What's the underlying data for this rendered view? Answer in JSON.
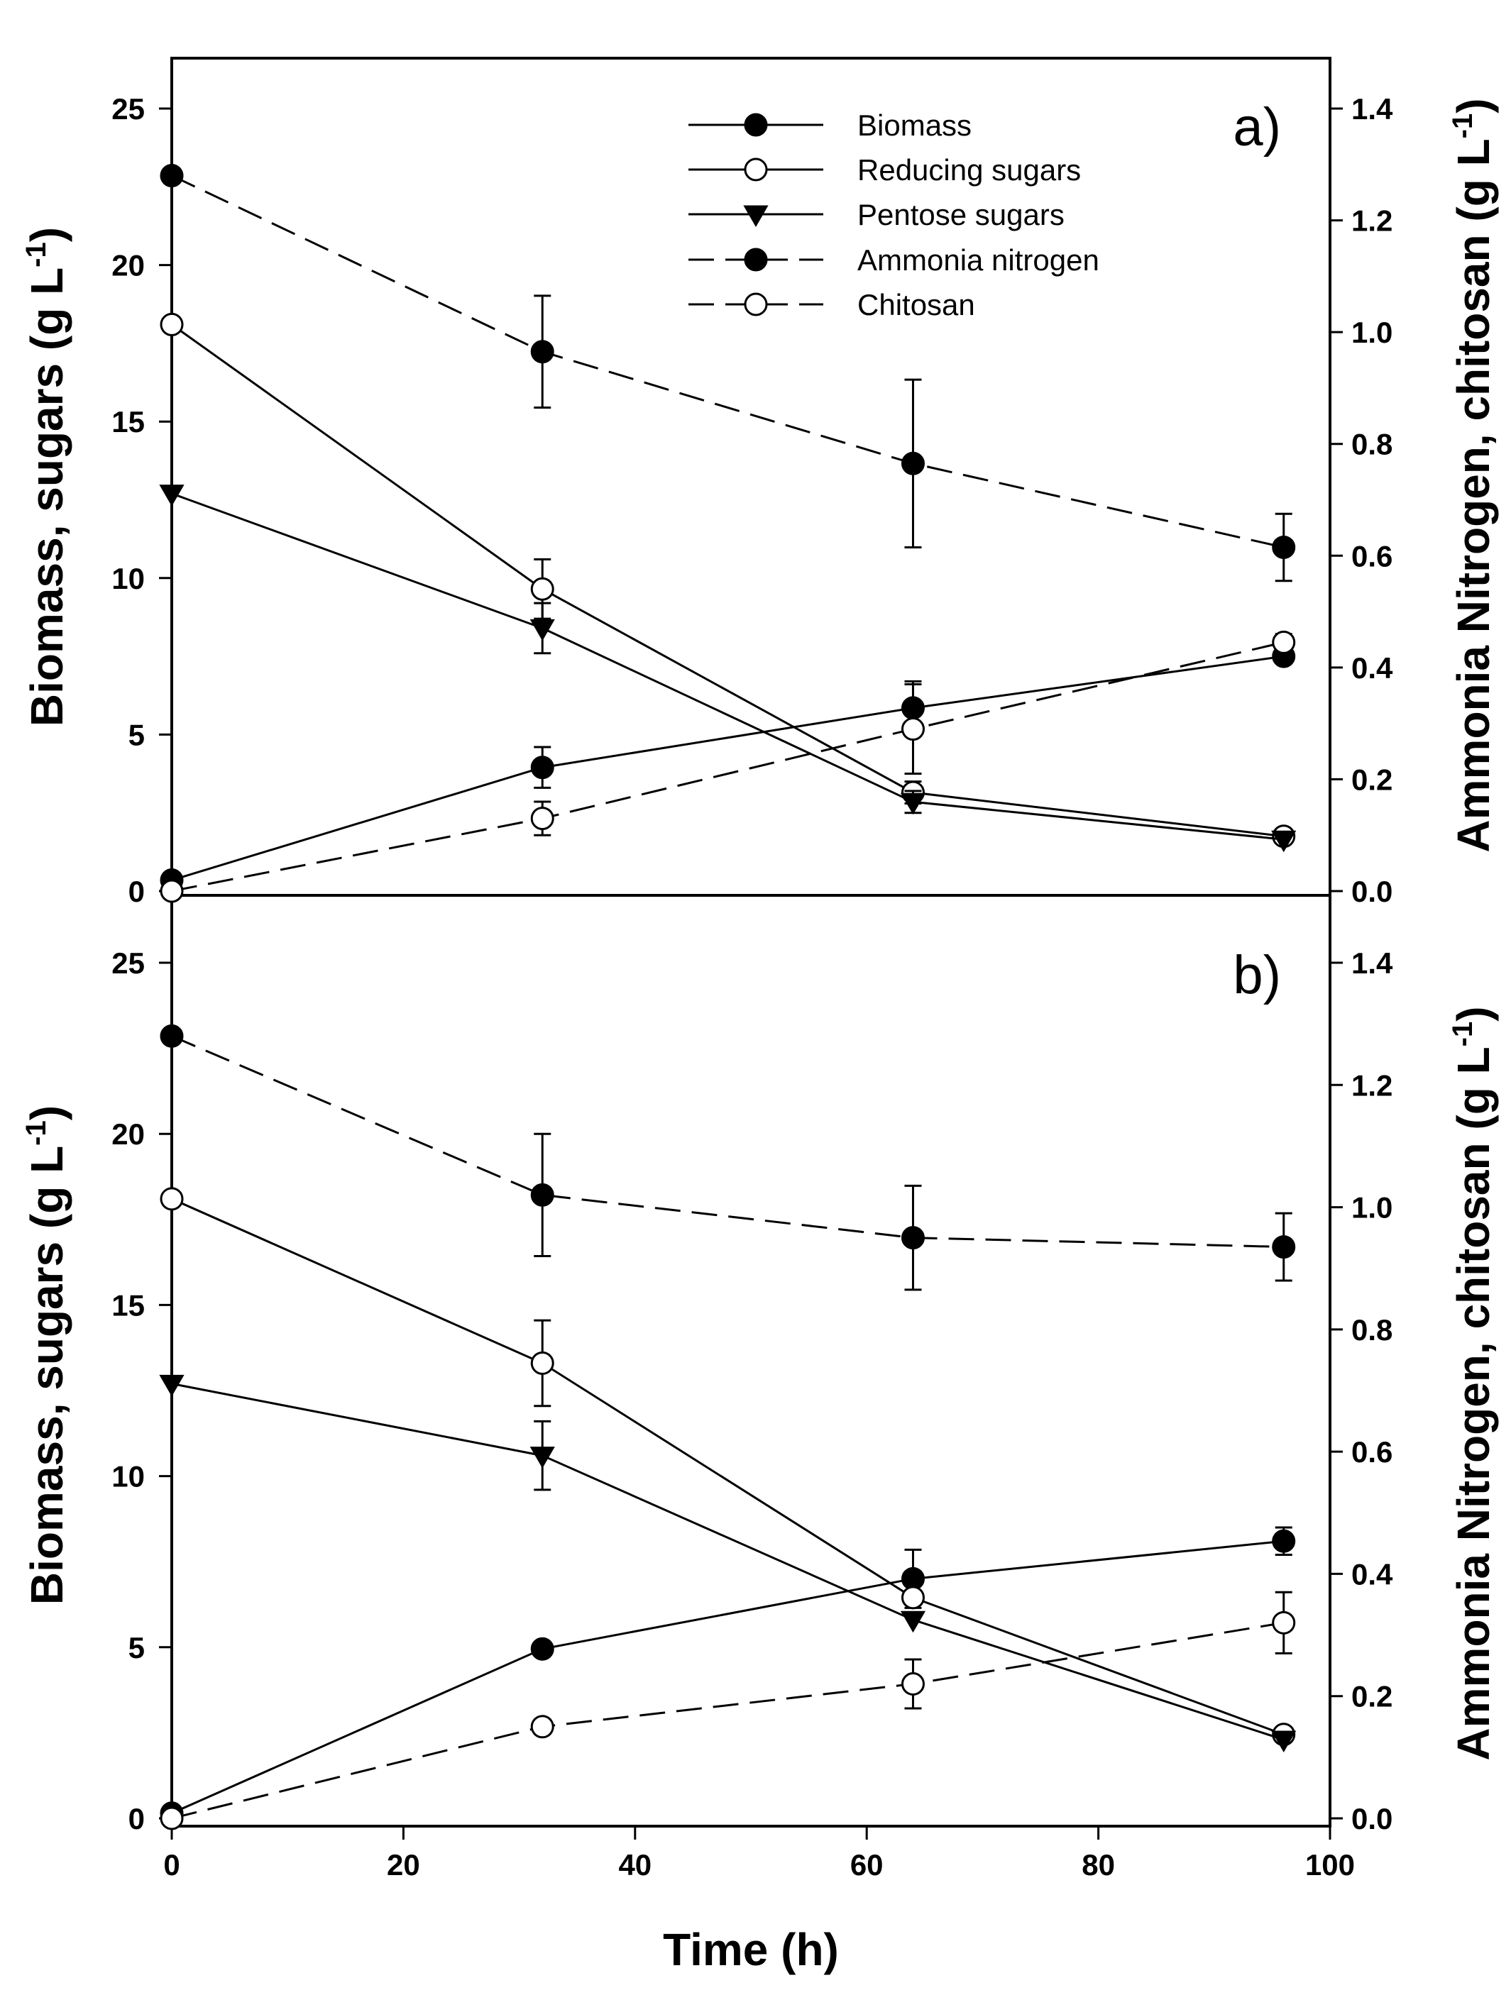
{
  "chart_data": {
    "type": "line",
    "xlabel": "Time (h)",
    "xlim": [
      0,
      100
    ],
    "x_ticks": [
      "0",
      "20",
      "40",
      "60",
      "80",
      "100"
    ],
    "ylabel_left": "Biomass, sugars (g L",
    "ylabel_right": "Ammonia Nitrogen, chitosan (g L",
    "ylabel_unit_exponent": "-1",
    "ylabel_close": ")",
    "ylim_left": [
      0,
      26
    ],
    "ylim_right": [
      0,
      1.456
    ],
    "left_ticks": [
      "0",
      "5",
      "10",
      "15",
      "20",
      "25"
    ],
    "right_ticks": [
      "0.0",
      "0.2",
      "0.4",
      "0.6",
      "0.8",
      "1.0",
      "1.2",
      "1.4"
    ],
    "legend": [
      {
        "name": "Biomass",
        "line": "solid",
        "marker": "filled-circle"
      },
      {
        "name": "Reducing sugars",
        "line": "solid",
        "marker": "open-circle"
      },
      {
        "name": "Pentose sugars",
        "line": "solid",
        "marker": "filled-triangle-down"
      },
      {
        "name": "Ammonia nitrogen",
        "line": "dashed",
        "marker": "filled-circle"
      },
      {
        "name": "Chitosan",
        "line": "dashed",
        "marker": "open-circle"
      }
    ],
    "panels": [
      {
        "label": "a)",
        "series": [
          {
            "name": "Biomass",
            "axis": "left",
            "x": [
              0,
              32,
              64,
              96
            ],
            "y": [
              0.35,
              3.95,
              5.85,
              7.5
            ],
            "err": [
              0,
              0.65,
              0.85,
              0
            ]
          },
          {
            "name": "Reducing sugars",
            "axis": "left",
            "x": [
              0,
              32,
              64,
              96
            ],
            "y": [
              18.1,
              9.65,
              3.15,
              1.75
            ],
            "err": [
              0,
              0.95,
              0.35,
              0
            ]
          },
          {
            "name": "Pentose sugars",
            "axis": "left",
            "x": [
              0,
              32,
              64,
              96
            ],
            "y": [
              12.7,
              8.4,
              2.85,
              1.65
            ],
            "err": [
              0,
              0.8,
              0.35,
              0
            ]
          },
          {
            "name": "Ammonia nitrogen",
            "axis": "right",
            "x": [
              0,
              32,
              64,
              96
            ],
            "y": [
              1.28,
              0.965,
              0.765,
              0.615
            ],
            "err": [
              0,
              0.1,
              0.15,
              0.06
            ]
          },
          {
            "name": "Chitosan",
            "axis": "right",
            "x": [
              0,
              32,
              64,
              96
            ],
            "y": [
              0.0,
              0.13,
              0.29,
              0.445
            ],
            "err": [
              0,
              0.03,
              0.08,
              0.015
            ]
          }
        ]
      },
      {
        "label": "b)",
        "series": [
          {
            "name": "Biomass",
            "axis": "left",
            "x": [
              0,
              32,
              64,
              96
            ],
            "y": [
              0.15,
              4.95,
              7.0,
              8.1
            ],
            "err": [
              0,
              0,
              0.85,
              0.4
            ]
          },
          {
            "name": "Reducing sugars",
            "axis": "left",
            "x": [
              0,
              32,
              64,
              96
            ],
            "y": [
              18.1,
              13.3,
              6.45,
              2.45
            ],
            "err": [
              0,
              1.25,
              0,
              0
            ]
          },
          {
            "name": "Pentose sugars",
            "axis": "left",
            "x": [
              0,
              32,
              64,
              96
            ],
            "y": [
              12.7,
              10.6,
              5.8,
              2.3
            ],
            "err": [
              0,
              1.0,
              0,
              0
            ]
          },
          {
            "name": "Ammonia nitrogen",
            "axis": "right",
            "x": [
              0,
              32,
              64,
              96
            ],
            "y": [
              1.28,
              1.02,
              0.95,
              0.935
            ],
            "err": [
              0,
              0.1,
              0.085,
              0.055
            ]
          },
          {
            "name": "Chitosan",
            "axis": "right",
            "x": [
              0,
              32,
              64,
              96
            ],
            "y": [
              0.0,
              0.15,
              0.22,
              0.32
            ],
            "err": [
              0,
              0.012,
              0.04,
              0.05
            ]
          }
        ]
      }
    ]
  }
}
